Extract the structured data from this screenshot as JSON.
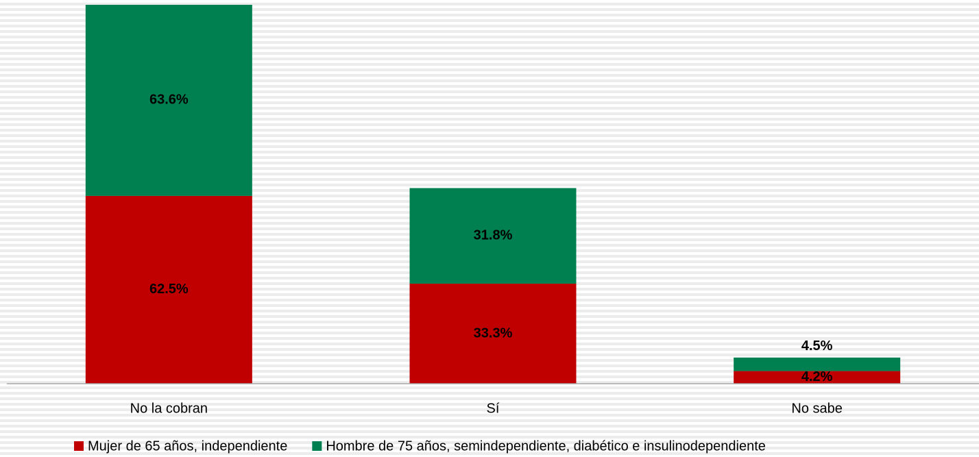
{
  "chart_data": {
    "type": "stacked_bar",
    "categories": [
      "No la cobran",
      "Sí",
      "No sabe"
    ],
    "series": [
      {
        "name": "Mujer de 65 años, independiente",
        "color": "#c00000",
        "values": [
          62.5,
          33.3,
          4.2
        ],
        "value_labels": [
          "62.5%",
          "33.3%",
          "4.2%"
        ]
      },
      {
        "name": "Hombre de 75 años, semindependiente, diabético e insulinodependiente",
        "color": "#008050",
        "values": [
          63.6,
          31.8,
          4.5
        ],
        "value_labels": [
          "63.6%",
          "31.8%",
          "4.5%"
        ]
      }
    ],
    "legend": "bottom"
  }
}
